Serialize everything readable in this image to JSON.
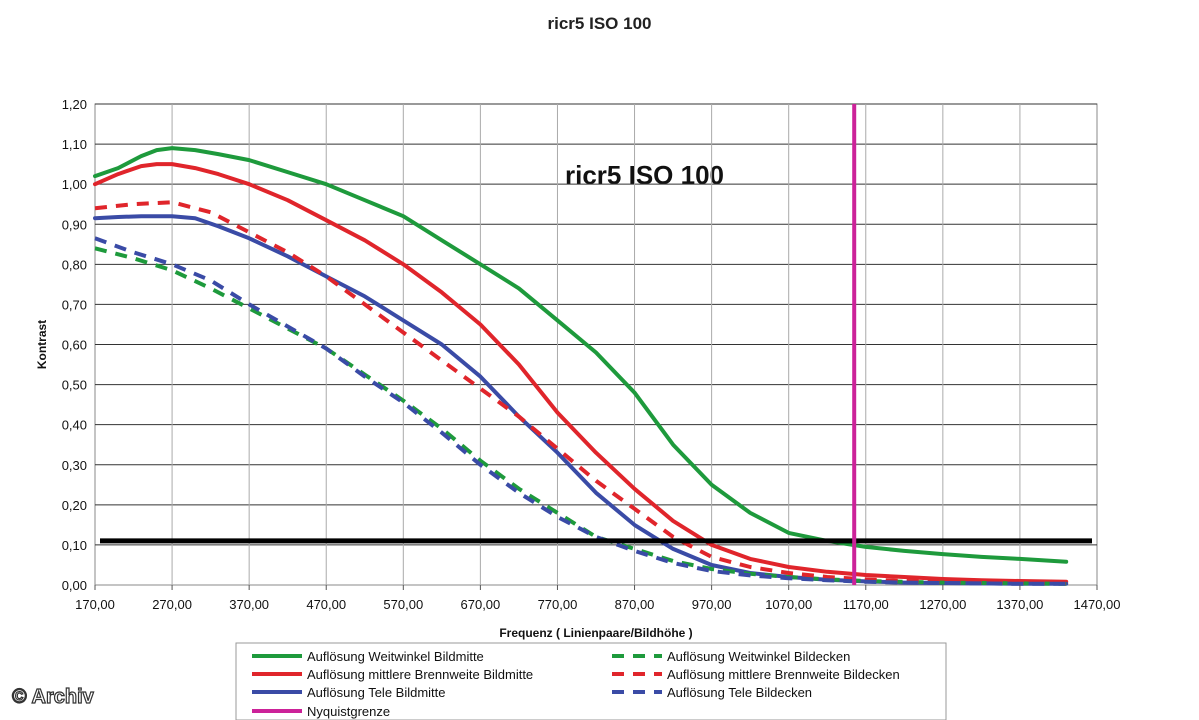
{
  "title": "ricr5 ISO 100",
  "copyright": "© Archiv",
  "chart_data": {
    "type": "line",
    "title": "ricr5 ISO 100",
    "inner_title": "ricr5 ISO 100",
    "xlabel": "Frequenz ( Linienpaare/Bildhöhe )",
    "ylabel": "Kontrast",
    "xlim": [
      170,
      1470
    ],
    "ylim": [
      0,
      1.2
    ],
    "x_ticks": [
      "170,00",
      "270,00",
      "370,00",
      "470,00",
      "570,00",
      "670,00",
      "770,00",
      "870,00",
      "970,00",
      "1070,00",
      "1170,00",
      "1270,00",
      "1370,00",
      "1470,00"
    ],
    "y_ticks": [
      "0,00",
      "0,10",
      "0,20",
      "0,30",
      "0,40",
      "0,50",
      "0,60",
      "0,70",
      "0,80",
      "0,90",
      "1,00",
      "1,10",
      "1,20"
    ],
    "grid": true,
    "legend_position": "bottom",
    "threshold_line": {
      "y": 0.11,
      "color": "#000000"
    },
    "nyquist": {
      "x": 1155,
      "color": "#cc2299",
      "name": "Nyquistgrenze"
    },
    "series": [
      {
        "name": "Auflösung Weitwinkel Bildmitte",
        "color": "#1e9a3c",
        "dashed": false,
        "x": [
          170,
          200,
          230,
          250,
          270,
          300,
          330,
          370,
          420,
          470,
          520,
          570,
          620,
          670,
          720,
          770,
          820,
          870,
          920,
          970,
          1020,
          1070,
          1120,
          1170,
          1220,
          1270,
          1320,
          1370,
          1430
        ],
        "y": [
          1.02,
          1.04,
          1.07,
          1.085,
          1.09,
          1.085,
          1.075,
          1.06,
          1.03,
          1.0,
          0.96,
          0.92,
          0.86,
          0.8,
          0.74,
          0.66,
          0.58,
          0.48,
          0.35,
          0.25,
          0.18,
          0.13,
          0.11,
          0.095,
          0.085,
          0.077,
          0.07,
          0.065,
          0.058
        ]
      },
      {
        "name": "Auflösung mittlere Brennweite Bildmitte",
        "color": "#e0252b",
        "dashed": false,
        "x": [
          170,
          200,
          230,
          250,
          270,
          300,
          330,
          370,
          420,
          470,
          520,
          570,
          620,
          670,
          720,
          770,
          820,
          870,
          920,
          970,
          1020,
          1070,
          1120,
          1170,
          1220,
          1270,
          1320,
          1370,
          1430
        ],
        "y": [
          1.0,
          1.025,
          1.045,
          1.05,
          1.05,
          1.04,
          1.025,
          1.0,
          0.96,
          0.91,
          0.86,
          0.8,
          0.73,
          0.65,
          0.55,
          0.43,
          0.33,
          0.24,
          0.16,
          0.1,
          0.065,
          0.045,
          0.033,
          0.025,
          0.02,
          0.015,
          0.012,
          0.01,
          0.008
        ]
      },
      {
        "name": "Auflösung Tele Bildmitte",
        "color": "#3a4ba6",
        "dashed": false,
        "x": [
          170,
          200,
          230,
          250,
          270,
          300,
          330,
          370,
          420,
          470,
          520,
          570,
          620,
          670,
          720,
          770,
          820,
          870,
          920,
          970,
          1020,
          1070,
          1120,
          1170,
          1220,
          1270,
          1320,
          1370,
          1430
        ],
        "y": [
          0.915,
          0.918,
          0.92,
          0.92,
          0.92,
          0.915,
          0.895,
          0.865,
          0.82,
          0.77,
          0.72,
          0.66,
          0.6,
          0.52,
          0.42,
          0.33,
          0.23,
          0.15,
          0.09,
          0.05,
          0.03,
          0.02,
          0.013,
          0.009,
          0.006,
          0.005,
          0.004,
          0.003,
          0.003
        ]
      },
      {
        "name": "Auflösung Weitwinkel Bildecken",
        "color": "#1e9a3c",
        "dashed": true,
        "x": [
          170,
          220,
          270,
          320,
          370,
          420,
          470,
          520,
          570,
          620,
          670,
          720,
          770,
          820,
          870,
          920,
          970,
          1020,
          1070,
          1120,
          1170,
          1220,
          1270,
          1320,
          1370,
          1430
        ],
        "y": [
          0.84,
          0.815,
          0.785,
          0.74,
          0.69,
          0.64,
          0.59,
          0.525,
          0.46,
          0.39,
          0.31,
          0.24,
          0.18,
          0.12,
          0.09,
          0.06,
          0.04,
          0.028,
          0.02,
          0.014,
          0.01,
          0.008,
          0.006,
          0.005,
          0.004,
          0.003
        ]
      },
      {
        "name": "Auflösung mittlere Brennweite Bildecken",
        "color": "#e0252b",
        "dashed": true,
        "x": [
          170,
          220,
          270,
          320,
          370,
          420,
          470,
          520,
          570,
          620,
          670,
          720,
          770,
          820,
          870,
          920,
          970,
          1020,
          1070,
          1120,
          1170,
          1220,
          1270,
          1320,
          1370,
          1430
        ],
        "y": [
          0.94,
          0.95,
          0.955,
          0.93,
          0.88,
          0.83,
          0.77,
          0.7,
          0.63,
          0.56,
          0.49,
          0.42,
          0.34,
          0.26,
          0.19,
          0.12,
          0.07,
          0.045,
          0.03,
          0.02,
          0.014,
          0.01,
          0.008,
          0.006,
          0.005,
          0.004
        ]
      },
      {
        "name": "Auflösung Tele Bildecken",
        "color": "#3a4ba6",
        "dashed": true,
        "x": [
          170,
          220,
          270,
          320,
          370,
          420,
          470,
          520,
          570,
          620,
          670,
          720,
          770,
          820,
          870,
          920,
          970,
          1020,
          1070,
          1120,
          1170,
          1220,
          1270,
          1320,
          1370,
          1430
        ],
        "y": [
          0.865,
          0.83,
          0.8,
          0.76,
          0.7,
          0.645,
          0.59,
          0.52,
          0.455,
          0.38,
          0.3,
          0.23,
          0.17,
          0.12,
          0.085,
          0.055,
          0.035,
          0.024,
          0.017,
          0.012,
          0.008,
          0.006,
          0.005,
          0.004,
          0.003,
          0.003
        ]
      }
    ]
  }
}
